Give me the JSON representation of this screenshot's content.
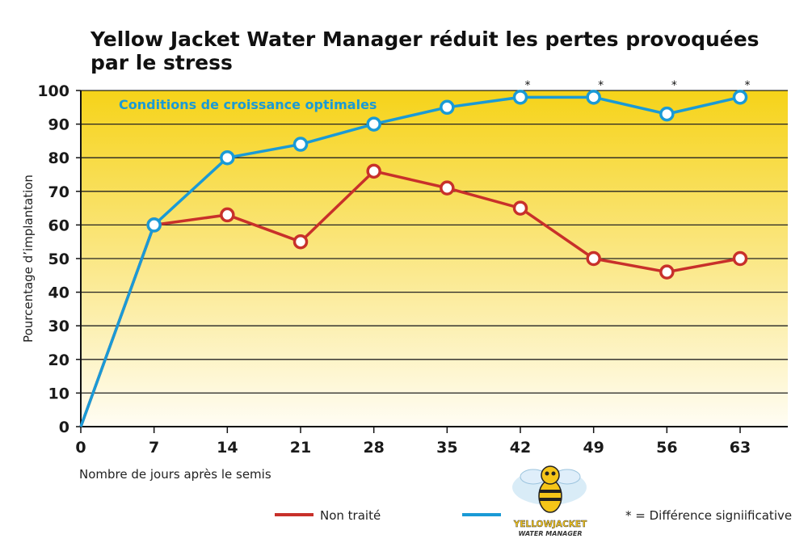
{
  "chart_data": {
    "type": "line",
    "title": "Yellow Jacket Water Manager réduit les pertes provoquées par le stress",
    "xlabel": "Nombre de jours après le semis",
    "ylabel": "Pourcentage d’implantation",
    "ylim": [
      0,
      100
    ],
    "xlim": [
      0,
      63
    ],
    "x": [
      0,
      7,
      14,
      21,
      28,
      35,
      42,
      49,
      56,
      63
    ],
    "x_ticks": [
      "0",
      "7",
      "14",
      "21",
      "28",
      "35",
      "42",
      "49",
      "56",
      "63"
    ],
    "y_ticks": [
      "0",
      "10",
      "20",
      "30",
      "40",
      "50",
      "60",
      "70",
      "80",
      "90",
      "100"
    ],
    "grid": true,
    "annotation": "Conditions de croissance optimales",
    "significance_marker": "*",
    "significant_x": [
      42,
      49,
      56,
      63
    ],
    "series": [
      {
        "name": "Non traité",
        "color": "#c8302a",
        "values": [
          0,
          60,
          63,
          55,
          76,
          71,
          65,
          50,
          46,
          50
        ]
      },
      {
        "name": "",
        "color": "#1a9ad6",
        "values": [
          0,
          60,
          80,
          84,
          90,
          95,
          98,
          98,
          93,
          98
        ]
      }
    ],
    "legend": {
      "placement": "bottom",
      "items": [
        {
          "label": "Non traité",
          "color": "#c8302a"
        },
        {
          "logo_text_1": "YELLOWJACKET",
          "logo_text_2": "WATER MANAGER",
          "color": "#1a9ad6"
        },
        {
          "label": "* = Différence signiificative"
        }
      ]
    }
  }
}
